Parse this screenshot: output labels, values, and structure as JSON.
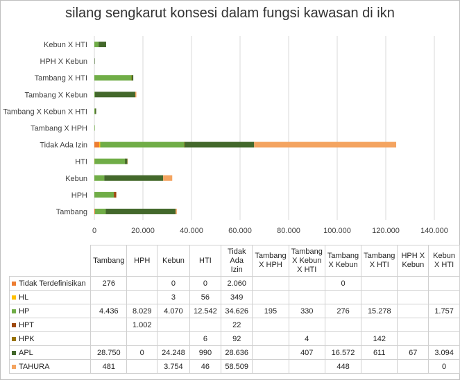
{
  "chart_data": {
    "type": "bar",
    "orientation": "horizontal",
    "stacked": true,
    "title": "silang sengkarut konsesi dalam fungsi kawasan di ikn",
    "categories": [
      "Tambang",
      "HPH",
      "Kebun",
      "HTI",
      "Tidak Ada Izin",
      "Tambang X HPH",
      "Tambang X Kebun X HTI",
      "Tambang X Kebun",
      "Tambang X HTI",
      "HPH X Kebun",
      "Kebun X HTI"
    ],
    "xlim": [
      0,
      140000
    ],
    "xticks": [
      "0",
      "20.000",
      "40.000",
      "60.000",
      "80.000",
      "100.000",
      "120.000",
      "140.000"
    ],
    "grid": true,
    "legend": "table",
    "table_headers": [
      "Tambang",
      "HPH",
      "Kebun",
      "HTI",
      "Tidak Ada Izin",
      "Tambang X HPH",
      "Tambang X Kebun X HTI",
      "Tambang X Kebun",
      "Tambang X HTI",
      "HPH X Kebun",
      "Kebun X HTI"
    ],
    "series": [
      {
        "name": "Tidak Terdefinisikan",
        "color": "#ED7D31",
        "values": [
          276,
          null,
          0,
          0,
          2060,
          null,
          null,
          0,
          null,
          null,
          null
        ],
        "labels": [
          "276",
          "",
          "0",
          "0",
          "2.060",
          "",
          "",
          "0",
          "",
          "",
          ""
        ]
      },
      {
        "name": "HL",
        "color": "#FFC000",
        "values": [
          null,
          null,
          3,
          56,
          349,
          null,
          null,
          null,
          null,
          null,
          null
        ],
        "labels": [
          "",
          "",
          "3",
          "56",
          "349",
          "",
          "",
          "",
          "",
          "",
          ""
        ]
      },
      {
        "name": "HP",
        "color": "#70AD47",
        "values": [
          4436,
          8029,
          4070,
          12542,
          34626,
          195,
          330,
          276,
          15278,
          null,
          1757
        ],
        "labels": [
          "4.436",
          "8.029",
          "4.070",
          "12.542",
          "34.626",
          "195",
          "330",
          "276",
          "15.278",
          "",
          "1.757"
        ]
      },
      {
        "name": "HPT",
        "color": "#9E480E",
        "values": [
          null,
          1002,
          null,
          null,
          22,
          null,
          null,
          null,
          null,
          null,
          null
        ],
        "labels": [
          "",
          "1.002",
          "",
          "",
          "22",
          "",
          "",
          "",
          "",
          "",
          ""
        ]
      },
      {
        "name": "HPK",
        "color": "#997300",
        "values": [
          null,
          null,
          null,
          6,
          92,
          null,
          4,
          null,
          142,
          null,
          null
        ],
        "labels": [
          "",
          "",
          "",
          "6",
          "92",
          "",
          "4",
          "",
          "142",
          "",
          ""
        ]
      },
      {
        "name": "APL",
        "color": "#43682B",
        "values": [
          28750,
          0,
          24248,
          990,
          28636,
          null,
          407,
          16572,
          611,
          67,
          3094
        ],
        "labels": [
          "28.750",
          "0",
          "24.248",
          "990",
          "28.636",
          "",
          "407",
          "16.572",
          "611",
          "67",
          "3.094"
        ]
      },
      {
        "name": "TAHURA",
        "color": "#F4A460",
        "values": [
          481,
          null,
          3754,
          46,
          58509,
          null,
          null,
          448,
          null,
          null,
          0
        ],
        "labels": [
          "481",
          "",
          "3.754",
          "46",
          "58.509",
          "",
          "",
          "448",
          "",
          "",
          "0"
        ]
      }
    ]
  }
}
